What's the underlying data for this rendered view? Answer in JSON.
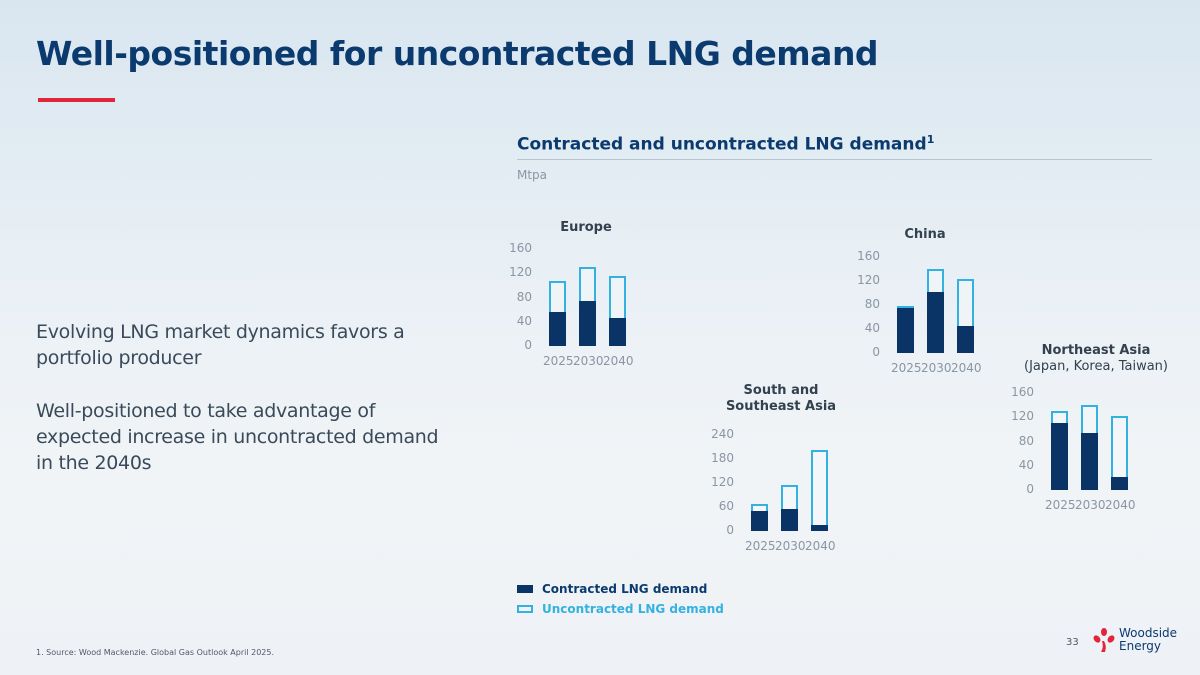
{
  "title": "Well-positioned for uncontracted LNG demand",
  "bullets": [
    "Evolving LNG market dynamics favors a portfolio producer",
    "Well-positioned to take advantage of expected increase in uncontracted demand in the 2040s"
  ],
  "footnote": "1.      Source: Wood Mackenzie. Global Gas Outlook April 2025.",
  "page_number": "33",
  "logo": {
    "line1": "Woodside",
    "line2": "Energy"
  },
  "colors": {
    "contracted": "#0a3366",
    "uncontracted": "#33b1e0",
    "title": "#0b3a6e",
    "accent": "#e2263a"
  },
  "chart_data": {
    "type": "bar",
    "title": "Contracted and uncontracted LNG demand",
    "title_sup": "1",
    "ylabel": "Mtpa",
    "legend": [
      "Contracted LNG demand",
      "Uncontracted LNG demand"
    ],
    "categories": [
      "2025",
      "2030",
      "2040"
    ],
    "stacked": true,
    "panels": [
      {
        "name": "Europe",
        "sub": "",
        "yticks": [
          "0",
          "40",
          "80",
          "120",
          "160"
        ],
        "ylim": [
          0,
          160
        ],
        "contracted": [
          56,
          74,
          47
        ],
        "total": [
          108,
          130,
          116
        ]
      },
      {
        "name": "China",
        "sub": "",
        "yticks": [
          "0",
          "40",
          "80",
          "120",
          "160"
        ],
        "ylim": [
          0,
          160
        ],
        "contracted": [
          75,
          101,
          45
        ],
        "total": [
          78,
          140,
          124
        ]
      },
      {
        "name": "South and Southeast Asia",
        "sub": "",
        "yticks": [
          "0",
          "60",
          "120",
          "180",
          "240"
        ],
        "ylim": [
          0,
          240
        ],
        "contracted": [
          50,
          56,
          15
        ],
        "total": [
          68,
          114,
          203
        ]
      },
      {
        "name": "Northeast Asia",
        "sub": "(Japan, Korea, Taiwan)",
        "yticks": [
          "0",
          "40",
          "80",
          "120",
          "160"
        ],
        "ylim": [
          0,
          160
        ],
        "contracted": [
          110,
          94,
          22
        ],
        "total": [
          131,
          140,
          122
        ]
      }
    ]
  }
}
